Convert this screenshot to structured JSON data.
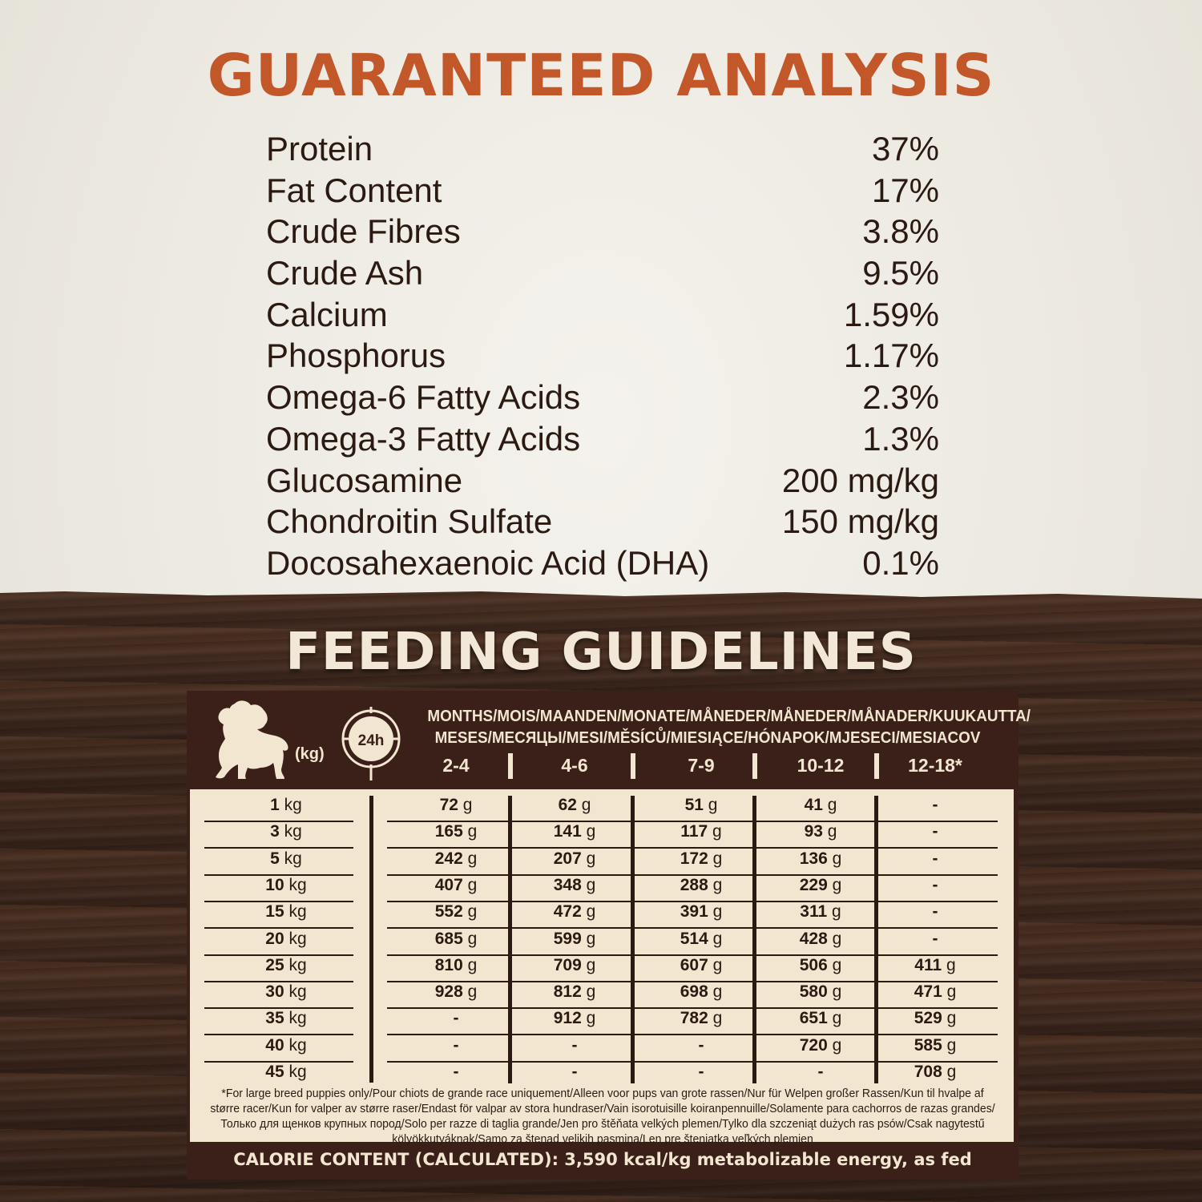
{
  "analysis": {
    "title": "GUARANTEED ANALYSIS",
    "items": [
      {
        "name": "Protein",
        "value": "37%"
      },
      {
        "name": "Fat Content",
        "value": "17%"
      },
      {
        "name": "Crude Fibres",
        "value": "3.8%"
      },
      {
        "name": "Crude Ash",
        "value": "9.5%"
      },
      {
        "name": "Calcium",
        "value": "1.59%"
      },
      {
        "name": "Phosphorus",
        "value": "1.17%"
      },
      {
        "name": "Omega-6 Fatty Acids",
        "value": "2.3%"
      },
      {
        "name": "Omega-3 Fatty Acids",
        "value": "1.3%"
      },
      {
        "name": "Glucosamine",
        "value": "200 mg/kg"
      },
      {
        "name": "Chondroitin Sulfate",
        "value": "150 mg/kg"
      },
      {
        "name": "Docosahexaenoic Acid (DHA)",
        "value": "0.1%"
      }
    ]
  },
  "feeding": {
    "title": "FEEDING GUIDELINES",
    "weight_label": "(kg)",
    "clock_label": "24h",
    "months_header_line1": "MONTHS/MOIS/MAANDEN/MONATE/MÅNEDER/MÅNEDER/MÅNADER/KUUKAUTTA/",
    "months_header_line2": "MESES/МЕСЯЦЫ/MESI/MĚSÍCŮ/MIESIĄCE/HÓNAPOK/MJESECI/MESIACOV",
    "ages": [
      "2-4",
      "4-6",
      "7-9",
      "10-12",
      "12-18*"
    ],
    "rows": [
      {
        "kg": "1",
        "unit": "kg",
        "values": [
          "72",
          "62",
          "51",
          "41",
          "-"
        ]
      },
      {
        "kg": "3",
        "unit": "kg",
        "values": [
          "165",
          "141",
          "117",
          "93",
          "-"
        ]
      },
      {
        "kg": "5",
        "unit": "kg",
        "values": [
          "242",
          "207",
          "172",
          "136",
          "-"
        ]
      },
      {
        "kg": "10",
        "unit": "kg",
        "values": [
          "407",
          "348",
          "288",
          "229",
          "-"
        ]
      },
      {
        "kg": "15",
        "unit": "kg",
        "values": [
          "552",
          "472",
          "391",
          "311",
          "-"
        ]
      },
      {
        "kg": "20",
        "unit": "kg",
        "values": [
          "685",
          "599",
          "514",
          "428",
          "-"
        ]
      },
      {
        "kg": "25",
        "unit": "kg",
        "values": [
          "810",
          "709",
          "607",
          "506",
          "411"
        ]
      },
      {
        "kg": "30",
        "unit": "kg",
        "values": [
          "928",
          "812",
          "698",
          "580",
          "471"
        ]
      },
      {
        "kg": "35",
        "unit": "kg",
        "values": [
          "-",
          "912",
          "782",
          "651",
          "529"
        ]
      },
      {
        "kg": "40",
        "unit": "kg",
        "values": [
          "-",
          "-",
          "-",
          "720",
          "585"
        ]
      },
      {
        "kg": "45",
        "unit": "kg",
        "values": [
          "-",
          "-",
          "-",
          "-",
          "708"
        ]
      }
    ],
    "value_unit": "g",
    "footnote": "*For large breed puppies only/Pour chiots de grande race uniquement/Alleen voor pups van grote rassen/Nur für Welpen großer Rassen/Kun til hvalpe af større racer/Kun for valper av større raser/Endast för valpar av stora hundraser/Vain isorotuisille koiranpennuille/Solamente para cachorros de razas grandes/Только для щенков крупных пород/Solo per razze di taglia grande/Jen pro štěňata velkých plemen/Tylko dla szczeniąt dużych ras psów/Csak nagytestű kölyökkutyáknak/Samo za štenad velikih pasmina/Len pre šteniatka veľkých plemien",
    "calorie": "CALORIE CONTENT (CALCULATED): 3,590 kcal/kg metabolizable energy, as fed"
  },
  "colors": {
    "title_orange": "#c2572a",
    "text_dark": "#2b1a12",
    "panel_brown": "#3a2019",
    "cream": "#f3e6d1"
  }
}
